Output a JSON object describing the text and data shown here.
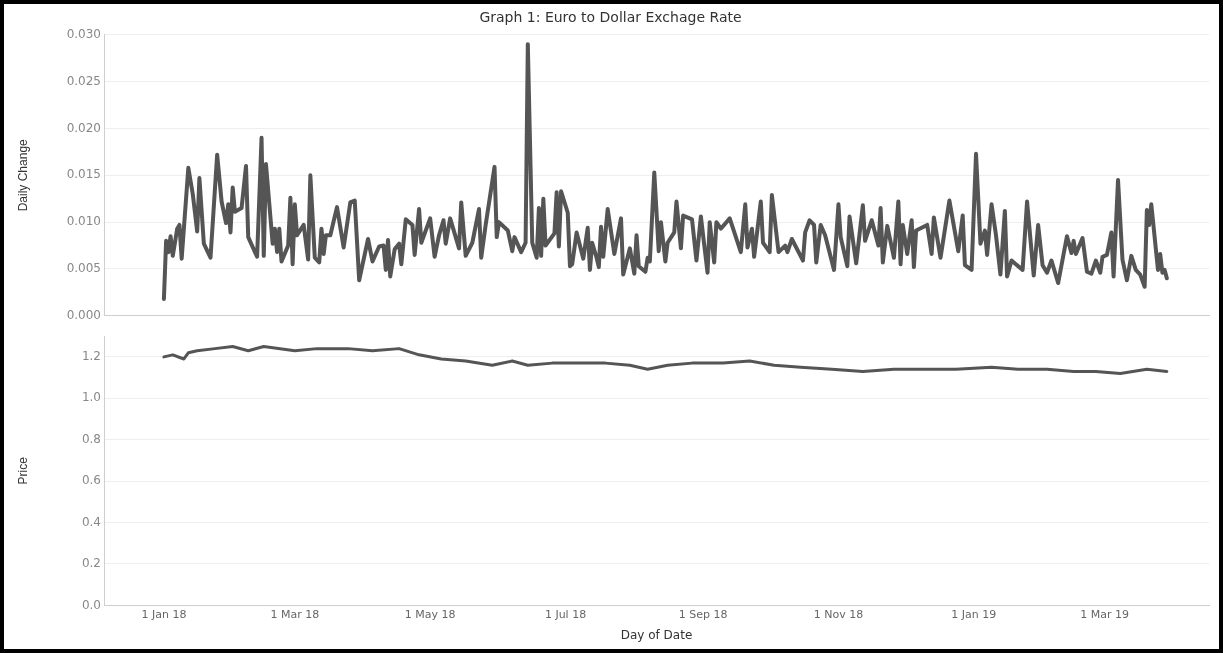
{
  "chart_data": [
    {
      "type": "line",
      "title": "Graph 1: Euro to Dollar Exchage Rate",
      "ylabel": "Daily Change",
      "color": "#555555",
      "grid": "y",
      "tick_labels": "y",
      "xlim": [
        "2017-12-05",
        "2019-04-17"
      ],
      "ylim": [
        0,
        0.03
      ],
      "yticks": [
        {
          "value": 0,
          "label": "0.000"
        },
        {
          "value": 0.005,
          "label": "0.005"
        },
        {
          "value": 0.01,
          "label": "0.010"
        },
        {
          "value": 0.015,
          "label": "0.015"
        },
        {
          "value": 0.02,
          "label": "0.020"
        },
        {
          "value": 0.025,
          "label": "0.025"
        },
        {
          "value": 0.03,
          "label": "0.030"
        }
      ],
      "x": [
        "2018-01-01",
        "2018-01-02",
        "2018-01-03",
        "2018-01-04",
        "2018-01-05",
        "2018-01-07",
        "2018-01-08",
        "2018-01-09",
        "2018-01-12",
        "2018-01-14",
        "2018-01-16",
        "2018-01-17",
        "2018-01-19",
        "2018-01-22",
        "2018-01-25",
        "2018-01-27",
        "2018-01-29",
        "2018-01-30",
        "2018-01-31",
        "2018-02-01",
        "2018-02-02",
        "2018-02-05",
        "2018-02-07",
        "2018-02-08",
        "2018-02-12",
        "2018-02-14",
        "2018-02-15",
        "2018-02-16",
        "2018-02-19",
        "2018-02-20",
        "2018-02-21",
        "2018-02-22",
        "2018-02-23",
        "2018-02-26",
        "2018-02-27",
        "2018-02-28",
        "2018-03-01",
        "2018-03-02",
        "2018-03-05",
        "2018-03-07",
        "2018-03-08",
        "2018-03-10",
        "2018-03-12",
        "2018-03-13",
        "2018-03-14",
        "2018-03-15",
        "2018-03-17",
        "2018-03-20",
        "2018-03-23",
        "2018-03-26",
        "2018-03-28",
        "2018-03-30",
        "2018-04-03",
        "2018-04-05",
        "2018-04-08",
        "2018-04-10",
        "2018-04-11",
        "2018-04-12",
        "2018-04-13",
        "2018-04-15",
        "2018-04-17",
        "2018-04-18",
        "2018-04-20",
        "2018-04-23",
        "2018-04-24",
        "2018-04-26",
        "2018-04-27",
        "2018-05-01",
        "2018-05-03",
        "2018-05-05",
        "2018-05-07",
        "2018-05-08",
        "2018-05-10",
        "2018-05-14",
        "2018-05-15",
        "2018-05-17",
        "2018-05-20",
        "2018-05-23",
        "2018-05-24",
        "2018-05-26",
        "2018-05-30",
        "2018-05-31",
        "2018-06-01",
        "2018-06-05",
        "2018-06-07",
        "2018-06-08",
        "2018-06-11",
        "2018-06-13",
        "2018-06-14",
        "2018-06-16",
        "2018-06-18",
        "2018-06-19",
        "2018-06-20",
        "2018-06-21",
        "2018-06-22",
        "2018-06-26",
        "2018-06-27",
        "2018-06-28",
        "2018-06-29",
        "2018-07-02",
        "2018-07-03",
        "2018-07-04",
        "2018-07-06",
        "2018-07-09",
        "2018-07-11",
        "2018-07-12",
        "2018-07-13",
        "2018-07-15",
        "2018-07-16",
        "2018-07-17",
        "2018-07-18",
        "2018-07-20",
        "2018-07-23",
        "2018-07-26",
        "2018-07-27",
        "2018-07-30",
        "2018-08-01",
        "2018-08-02",
        "2018-08-03",
        "2018-08-06",
        "2018-08-07",
        "2018-08-08",
        "2018-08-10",
        "2018-08-12",
        "2018-08-13",
        "2018-08-15",
        "2018-08-16",
        "2018-08-19",
        "2018-08-20",
        "2018-08-22",
        "2018-08-23",
        "2018-08-27",
        "2018-08-29",
        "2018-08-31",
        "2018-09-03",
        "2018-09-04",
        "2018-09-06",
        "2018-09-07",
        "2018-09-09",
        "2018-09-13",
        "2018-09-18",
        "2018-09-20",
        "2018-09-21",
        "2018-09-23",
        "2018-09-24",
        "2018-09-27",
        "2018-09-28",
        "2018-10-01",
        "2018-10-02",
        "2018-10-05",
        "2018-10-08",
        "2018-10-09",
        "2018-10-11",
        "2018-10-16",
        "2018-10-17",
        "2018-10-19",
        "2018-10-21",
        "2018-10-22",
        "2018-10-24",
        "2018-10-26",
        "2018-10-30",
        "2018-11-01",
        "2018-11-02",
        "2018-11-05",
        "2018-11-06",
        "2018-11-09",
        "2018-11-12",
        "2018-11-13",
        "2018-11-16",
        "2018-11-19",
        "2018-11-20",
        "2018-11-21",
        "2018-11-23",
        "2018-11-26",
        "2018-11-28",
        "2018-11-29",
        "2018-11-30",
        "2018-12-02",
        "2018-12-04",
        "2018-12-05",
        "2018-12-06",
        "2018-12-11",
        "2018-12-13",
        "2018-12-14",
        "2018-12-17",
        "2018-12-21",
        "2018-12-25",
        "2018-12-27",
        "2018-12-28",
        "2018-12-31",
        "2019-01-02",
        "2019-01-04",
        "2019-01-06",
        "2019-01-07",
        "2019-01-09",
        "2019-01-11",
        "2019-01-13",
        "2019-01-15",
        "2019-01-16",
        "2019-01-18",
        "2019-01-23",
        "2019-01-25",
        "2019-01-28",
        "2019-01-30",
        "2019-02-01",
        "2019-02-03",
        "2019-02-05",
        "2019-02-08",
        "2019-02-12",
        "2019-02-14",
        "2019-02-15",
        "2019-02-16",
        "2019-02-19",
        "2019-02-21",
        "2019-02-23",
        "2019-02-25",
        "2019-02-27",
        "2019-02-28",
        "2019-03-02",
        "2019-03-04",
        "2019-03-05",
        "2019-03-07",
        "2019-03-09",
        "2019-03-11",
        "2019-03-13",
        "2019-03-15",
        "2019-03-17",
        "2019-03-19",
        "2019-03-20",
        "2019-03-21",
        "2019-03-22",
        "2019-03-25",
        "2019-03-26",
        "2019-03-27",
        "2019-03-28",
        "2019-03-29"
      ],
      "values": [
        0.0018,
        0.008,
        0.0068,
        0.0085,
        0.0064,
        0.0093,
        0.0097,
        0.0061,
        0.0158,
        0.013,
        0.009,
        0.0147,
        0.0077,
        0.0062,
        0.0172,
        0.0122,
        0.0099,
        0.0119,
        0.0089,
        0.0137,
        0.0111,
        0.0115,
        0.016,
        0.0084,
        0.0063,
        0.019,
        0.0064,
        0.0162,
        0.0077,
        0.0093,
        0.0068,
        0.0093,
        0.0058,
        0.0075,
        0.0126,
        0.0055,
        0.0119,
        0.0086,
        0.0097,
        0.006,
        0.015,
        0.0062,
        0.0057,
        0.0093,
        0.0066,
        0.0086,
        0.0086,
        0.0116,
        0.0073,
        0.0121,
        0.0123,
        0.0038,
        0.0082,
        0.0058,
        0.0074,
        0.0075,
        0.0049,
        0.0081,
        0.0042,
        0.0071,
        0.0077,
        0.0055,
        0.0103,
        0.0097,
        0.0065,
        0.0114,
        0.0078,
        0.0104,
        0.0063,
        0.0086,
        0.0102,
        0.0077,
        0.0104,
        0.0072,
        0.0121,
        0.0064,
        0.0078,
        0.0114,
        0.0062,
        0.0097,
        0.0159,
        0.0084,
        0.01,
        0.0091,
        0.0069,
        0.0084,
        0.0068,
        0.0078,
        0.029,
        0.0078,
        0.0062,
        0.0115,
        0.0064,
        0.0125,
        0.0075,
        0.0088,
        0.0132,
        0.0074,
        0.0133,
        0.011,
        0.0053,
        0.0055,
        0.0089,
        0.0061,
        0.0094,
        0.0049,
        0.0078,
        0.0062,
        0.0052,
        0.0095,
        0.0063,
        0.0114,
        0.0066,
        0.0104,
        0.0044,
        0.0072,
        0.0045,
        0.0086,
        0.0053,
        0.0047,
        0.0062,
        0.0058,
        0.0153,
        0.0069,
        0.01,
        0.0058,
        0.0078,
        0.0089,
        0.0122,
        0.0072,
        0.0107,
        0.0103,
        0.0059,
        0.0106,
        0.0046,
        0.01,
        0.0057,
        0.01,
        0.0093,
        0.0104,
        0.0068,
        0.0119,
        0.0073,
        0.0093,
        0.0063,
        0.0122,
        0.0078,
        0.0068,
        0.0129,
        0.0068,
        0.0075,
        0.0068,
        0.0082,
        0.0059,
        0.0089,
        0.0102,
        0.0097,
        0.0057,
        0.0097,
        0.0086,
        0.0049,
        0.0119,
        0.0084,
        0.0053,
        0.0106,
        0.0056,
        0.0118,
        0.008,
        0.0102,
        0.0075,
        0.0115,
        0.0057,
        0.0096,
        0.0062,
        0.0122,
        0.0055,
        0.0097,
        0.0066,
        0.0102,
        0.0052,
        0.0091,
        0.0097,
        0.0066,
        0.0105,
        0.0062,
        0.0123,
        0.0069,
        0.0107,
        0.0054,
        0.0049,
        0.0173,
        0.0077,
        0.0091,
        0.0065,
        0.0119,
        0.0086,
        0.0044,
        0.0112,
        0.0042,
        0.0059,
        0.0049,
        0.0122,
        0.0043,
        0.0097,
        0.0054,
        0.0046,
        0.0059,
        0.0035,
        0.0085,
        0.0067,
        0.008,
        0.0066,
        0.0083,
        0.0047,
        0.0045,
        0.0059,
        0.0046,
        0.0063,
        0.0065,
        0.0089,
        0.0042,
        0.0145,
        0.006,
        0.0038,
        0.0064,
        0.0049,
        0.0044,
        0.0031,
        0.0113,
        0.0097,
        0.0119,
        0.0049,
        0.0066,
        0.0046,
        0.0049,
        0.004
      ]
    },
    {
      "type": "line",
      "xlabel": "Day of Date",
      "ylabel": "Price",
      "color": "#555555",
      "grid": "y",
      "xlim": [
        "2017-12-05",
        "2019-04-17"
      ],
      "xticks": [
        {
          "value": "2018-01-01",
          "label": "1 Jan 18"
        },
        {
          "value": "2018-03-01",
          "label": "1 Mar 18"
        },
        {
          "value": "2018-05-01",
          "label": "1 May 18"
        },
        {
          "value": "2018-07-01",
          "label": "1 Jul 18"
        },
        {
          "value": "2018-09-01",
          "label": "1 Sep 18"
        },
        {
          "value": "2018-11-01",
          "label": "1 Nov 18"
        },
        {
          "value": "2019-01-01",
          "label": "1 Jan 19"
        },
        {
          "value": "2019-03-01",
          "label": "1 Mar 19"
        }
      ],
      "ylim": [
        0,
        1.3
      ],
      "yticks": [
        {
          "value": 0,
          "label": "0.0"
        },
        {
          "value": 0.2,
          "label": "0.2"
        },
        {
          "value": 0.4,
          "label": "0.4"
        },
        {
          "value": 0.6,
          "label": "0.6"
        },
        {
          "value": 0.8,
          "label": "0.8"
        },
        {
          "value": 1,
          "label": "1.0"
        },
        {
          "value": 1.2,
          "label": "1.2"
        }
      ],
      "x": [
        "2018-01-01",
        "2018-01-05",
        "2018-01-10",
        "2018-01-12",
        "2018-01-16",
        "2018-01-24",
        "2018-02-01",
        "2018-02-08",
        "2018-02-15",
        "2018-03-01",
        "2018-03-11",
        "2018-03-25",
        "2018-04-05",
        "2018-04-17",
        "2018-04-26",
        "2018-05-06",
        "2018-05-17",
        "2018-05-29",
        "2018-06-07",
        "2018-06-14",
        "2018-06-25",
        "2018-07-07",
        "2018-07-19",
        "2018-07-30",
        "2018-08-07",
        "2018-08-16",
        "2018-08-27",
        "2018-09-10",
        "2018-09-22",
        "2018-10-03",
        "2018-10-15",
        "2018-10-29",
        "2018-11-12",
        "2018-11-26",
        "2018-12-10",
        "2018-12-24",
        "2019-01-09",
        "2019-01-21",
        "2019-02-03",
        "2019-02-15",
        "2019-02-25",
        "2019-03-08",
        "2019-03-20",
        "2019-03-29"
      ],
      "values": [
        1.2,
        1.21,
        1.19,
        1.22,
        1.23,
        1.24,
        1.25,
        1.23,
        1.25,
        1.23,
        1.24,
        1.24,
        1.23,
        1.24,
        1.21,
        1.19,
        1.18,
        1.16,
        1.18,
        1.16,
        1.17,
        1.17,
        1.17,
        1.16,
        1.14,
        1.16,
        1.17,
        1.17,
        1.18,
        1.16,
        1.15,
        1.14,
        1.13,
        1.14,
        1.14,
        1.14,
        1.15,
        1.14,
        1.14,
        1.13,
        1.13,
        1.12,
        1.14,
        1.13
      ]
    }
  ]
}
